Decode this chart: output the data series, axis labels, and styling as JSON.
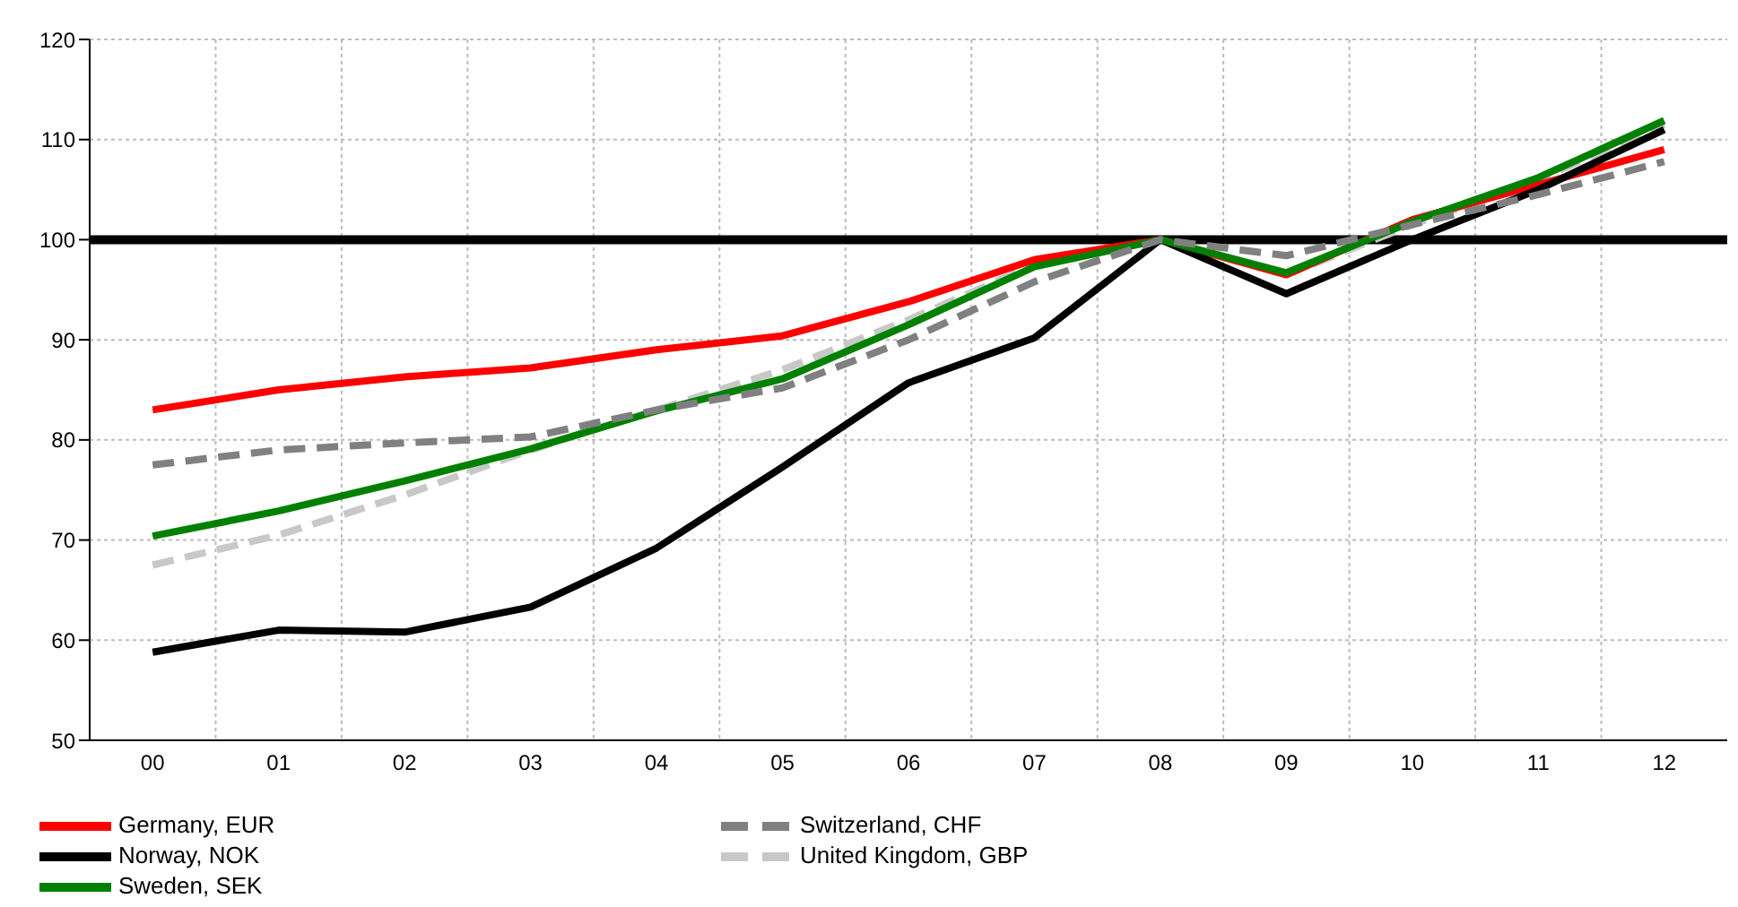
{
  "chart_data": {
    "type": "line",
    "categories": [
      "00",
      "01",
      "02",
      "03",
      "04",
      "05",
      "06",
      "07",
      "08",
      "09",
      "10",
      "11",
      "12"
    ],
    "series": [
      {
        "name": "United Kingdom, GBP",
        "color": "#c8c8c8",
        "line_style": "dashed",
        "values": [
          67.5,
          70.5,
          74.5,
          79,
          83,
          87,
          92,
          97.5,
          100,
          96.5,
          101.5,
          106,
          111.5
        ]
      },
      {
        "name": "Germany, EUR",
        "color": "#ff0000",
        "line_style": "solid",
        "values": [
          83,
          85,
          86.3,
          87.2,
          89,
          90.4,
          93.8,
          98,
          100,
          96.5,
          102,
          105.5,
          109
        ]
      },
      {
        "name": "Norway, NOK",
        "color": "#000000",
        "line_style": "solid",
        "values": [
          58.8,
          61,
          60.8,
          63.3,
          69.2,
          77.3,
          85.7,
          90.2,
          100,
          94.6,
          100,
          105,
          111
        ]
      },
      {
        "name": "Sweden, SEK",
        "color": "#008000",
        "line_style": "solid",
        "values": [
          70.4,
          72.9,
          75.9,
          79.1,
          82.9,
          86.1,
          91.5,
          97.3,
          100,
          96.7,
          101.8,
          106.2,
          111.9
        ]
      },
      {
        "name": "Switzerland, CHF",
        "color": "#808080",
        "line_style": "dashed",
        "values": [
          77.5,
          79,
          79.7,
          80.3,
          83,
          85.2,
          90,
          95.8,
          100,
          98.4,
          101.5,
          104.5,
          107.8
        ]
      }
    ],
    "ylim": [
      50,
      120
    ],
    "yticks": [
      50,
      60,
      70,
      80,
      90,
      100,
      110,
      120
    ],
    "grid": true,
    "legend": "bottom",
    "marker": "none",
    "ref_lines": [
      {
        "axis": "y",
        "value": 100,
        "color": "#000000",
        "line_style": "solid"
      }
    ]
  }
}
